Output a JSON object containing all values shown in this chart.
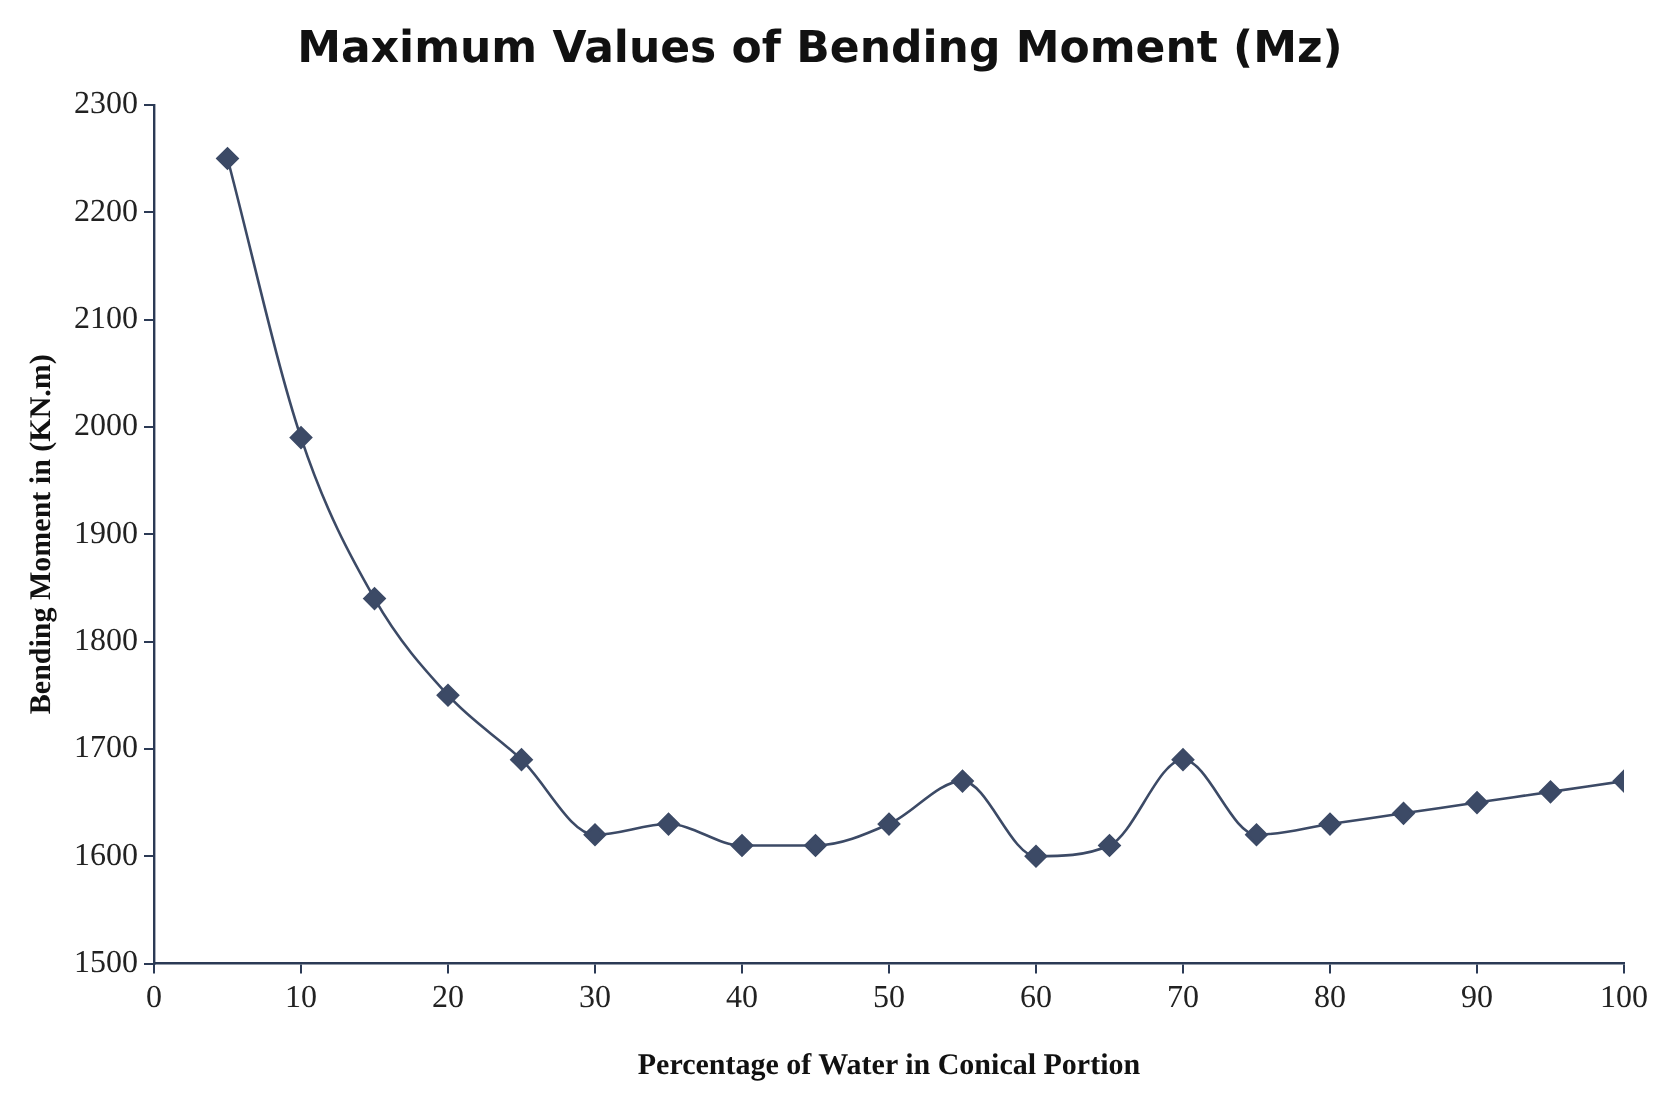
{
  "chart_data": {
    "type": "line",
    "title": "Maximum Values of Bending Moment (Mz)",
    "xlabel": "Percentage of Water in Conical Portion",
    "ylabel": "Bending Moment in (KN.m)",
    "x": [
      5,
      10,
      15,
      20,
      25,
      30,
      35,
      40,
      45,
      50,
      55,
      60,
      65,
      70,
      75,
      80,
      85,
      90,
      95,
      100
    ],
    "series": [
      {
        "color": "#3c4a66",
        "values": [
          2250,
          1990,
          1840,
          1750,
          1690,
          1620,
          1630,
          1610,
          1610,
          1630,
          1670,
          1600,
          1610,
          1690,
          1620,
          1630,
          1640,
          1650,
          1660,
          1670
        ]
      }
    ],
    "xlim": [
      0,
      100
    ],
    "xticks": [
      0,
      10,
      20,
      30,
      40,
      50,
      60,
      70,
      80,
      90,
      100
    ],
    "ylim": [
      1500,
      2300
    ],
    "yticks": [
      1500,
      1600,
      1700,
      1800,
      1900,
      2000,
      2100,
      2200,
      2300
    ],
    "grid": false,
    "legend": false,
    "marker": "diamond",
    "line_style": "solid"
  }
}
